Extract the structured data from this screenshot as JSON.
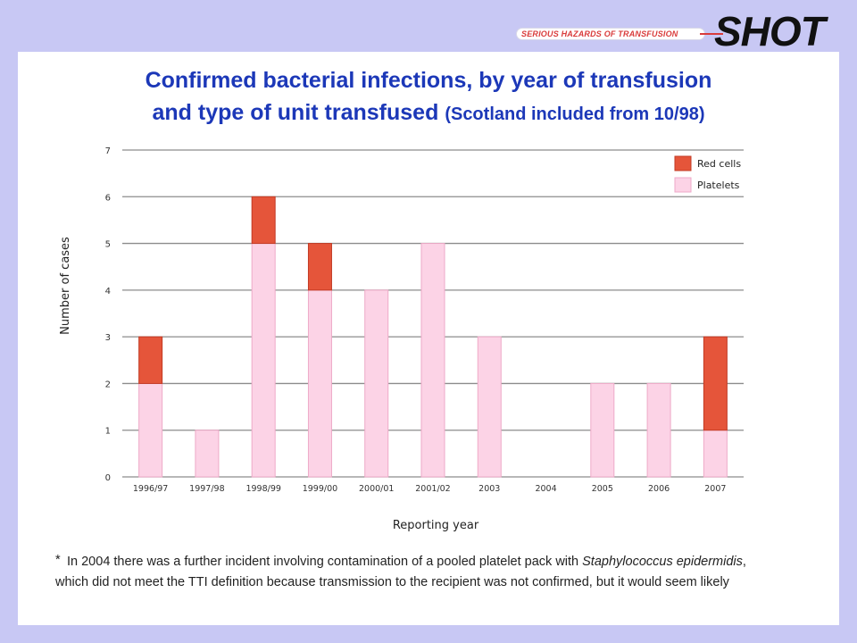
{
  "brand": {
    "tagline": "SERIOUS HAZARDS OF TRANSFUSION",
    "logo": "SHOT"
  },
  "title": {
    "main_line1": "Confirmed bacterial infections, by year of transfusion",
    "main_line2": "and type of unit transfused",
    "qualifier": "(Scotland included from 10/98)"
  },
  "chart_data": {
    "type": "bar",
    "stacked": true,
    "categories": [
      "1996/97",
      "1997/98",
      "1998/99",
      "1999/00",
      "2000/01",
      "2001/02",
      "2003",
      "2004",
      "2005",
      "2006",
      "2007"
    ],
    "series": [
      {
        "name": "Platelets",
        "values": [
          2,
          1,
          5,
          4,
          4,
          5,
          3,
          0,
          2,
          2,
          1
        ],
        "color": "#fcd3e6"
      },
      {
        "name": "Red cells",
        "values": [
          1,
          0,
          1,
          1,
          0,
          0,
          0,
          0,
          0,
          0,
          2
        ],
        "color": "#e5553a"
      }
    ],
    "legend_order": [
      "Red cells",
      "Platelets"
    ],
    "xlabel": "Reporting year",
    "ylabel": "Number of cases",
    "ylim": [
      0,
      7
    ],
    "yticks": [
      "0",
      "1",
      "2",
      "3",
      "4",
      "5",
      "6",
      "7"
    ],
    "grid": true,
    "legend_position": "top-right"
  },
  "footnote": {
    "star": "*",
    "line1_before": "In 2004 there was a further incident involving contamination of a pooled platelet pack with ",
    "line1_italic": "Staphylococcus epidermidis",
    "line1_after": ",",
    "line2": "which did not meet the TTI definition because transmission to the recipient was not confirmed, but it would seem likely"
  },
  "colors": {
    "background": "#c8c8f4",
    "title": "#1c38b8",
    "red_cells": "#e5553a",
    "platelets": "#fcd3e6"
  }
}
